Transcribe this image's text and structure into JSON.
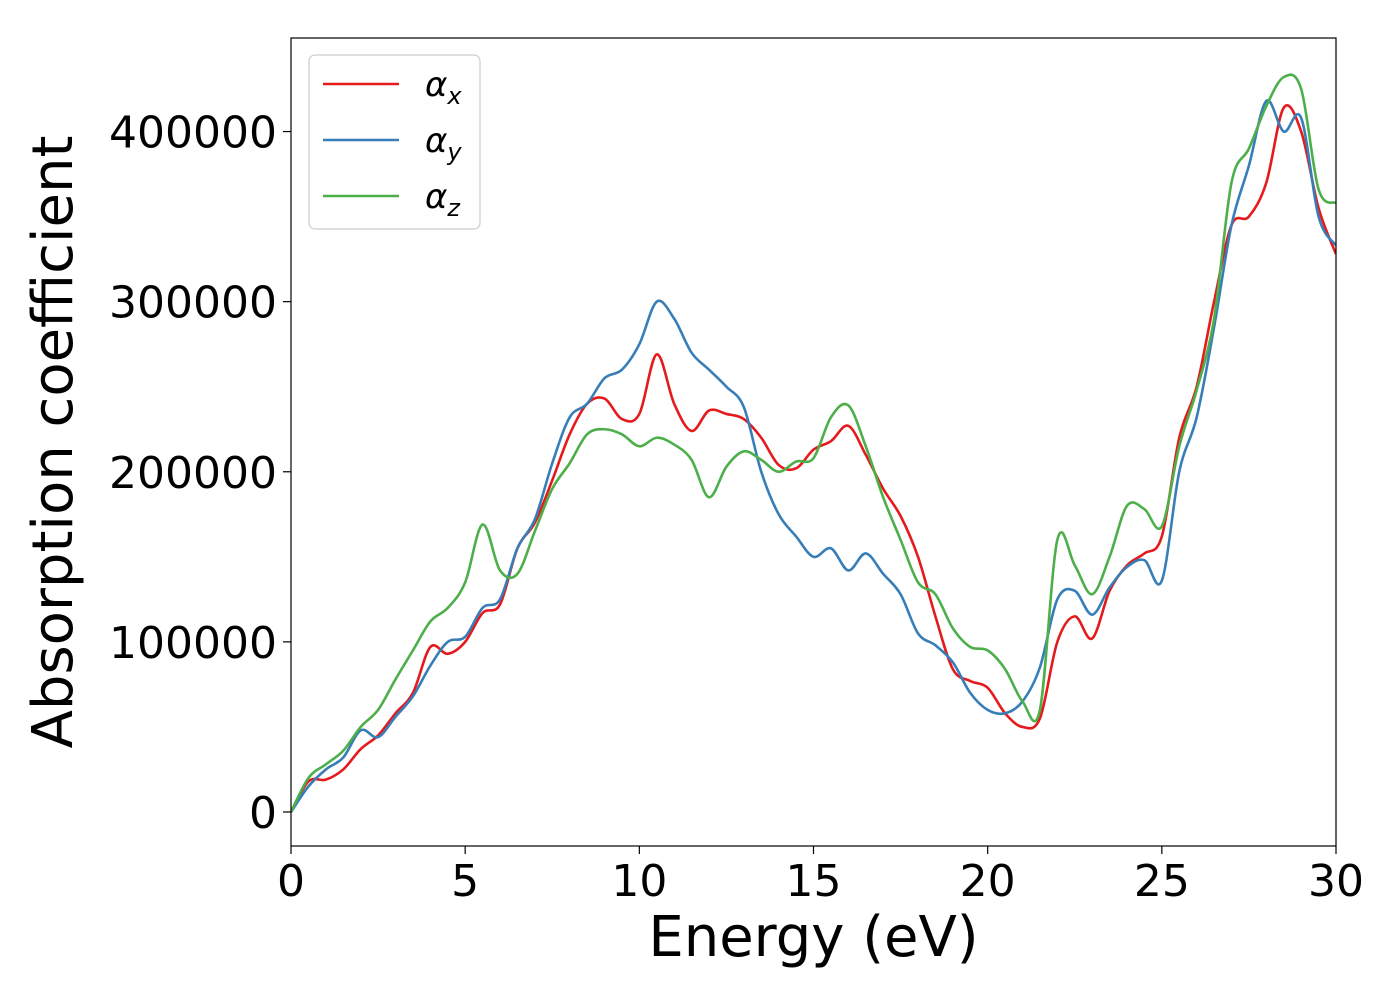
{
  "chart_data": {
    "type": "line",
    "xlabel": "Energy (eV)",
    "ylabel": "Absorption coefficient",
    "xlim": [
      0,
      30
    ],
    "ylim": [
      -20000,
      455000
    ],
    "xticks": [
      0,
      5,
      10,
      15,
      20,
      25,
      30
    ],
    "yticks": [
      0,
      100000,
      200000,
      300000,
      400000
    ],
    "grid": false,
    "legend_position": "upper-left",
    "series": [
      {
        "name": "α",
        "subscript": "x",
        "color": "#e41a1c",
        "x": [
          0,
          0.5,
          1,
          1.5,
          2,
          2.5,
          3,
          3.5,
          4,
          4.5,
          5,
          5.5,
          6,
          6.5,
          7,
          7.5,
          8,
          8.5,
          9,
          9.5,
          10,
          10.5,
          11,
          11.5,
          12,
          12.5,
          13,
          13.5,
          14,
          14.5,
          15,
          15.5,
          16,
          16.5,
          17,
          17.5,
          18,
          18.5,
          19,
          19.5,
          20,
          20.5,
          21,
          21.5,
          22,
          22.5,
          23,
          23.5,
          24,
          24.5,
          25,
          25.5,
          26,
          26.5,
          27,
          27.5,
          28,
          28.5,
          29,
          29.5,
          30
        ],
        "y": [
          0,
          18000,
          19000,
          25000,
          37000,
          45000,
          58000,
          70000,
          97000,
          93000,
          100000,
          117000,
          122000,
          155000,
          170000,
          195000,
          222000,
          240000,
          243000,
          231000,
          234000,
          269000,
          240000,
          224000,
          236000,
          234000,
          231000,
          220000,
          204000,
          202000,
          213000,
          218000,
          227000,
          210000,
          190000,
          174000,
          150000,
          115000,
          84000,
          77000,
          73000,
          58000,
          50000,
          55000,
          100000,
          115000,
          102000,
          130000,
          145000,
          152000,
          162000,
          220000,
          250000,
          300000,
          345000,
          350000,
          370000,
          414000,
          400000,
          355000,
          328000
        ]
      },
      {
        "name": "α",
        "subscript": "y",
        "color": "#377eb8",
        "x": [
          0,
          0.5,
          1,
          1.5,
          2,
          2.5,
          3,
          3.5,
          4,
          4.5,
          5,
          5.5,
          6,
          6.5,
          7,
          7.5,
          8,
          8.5,
          9,
          9.5,
          10,
          10.5,
          11,
          11.5,
          12,
          12.5,
          13,
          13.5,
          14,
          14.5,
          15,
          15.5,
          16,
          16.5,
          17,
          17.5,
          18,
          18.5,
          19,
          19.5,
          20,
          20.5,
          21,
          21.5,
          22,
          22.5,
          23,
          23.5,
          24,
          24.5,
          25,
          25.5,
          26,
          26.5,
          27,
          27.5,
          28,
          28.5,
          29,
          29.5,
          30
        ],
        "y": [
          0,
          15000,
          25000,
          32000,
          48000,
          44000,
          56000,
          68000,
          86000,
          100000,
          103000,
          120000,
          125000,
          155000,
          172000,
          205000,
          232000,
          240000,
          255000,
          260000,
          275000,
          300000,
          290000,
          270000,
          260000,
          250000,
          238000,
          200000,
          175000,
          162000,
          150000,
          155000,
          142000,
          152000,
          140000,
          128000,
          105000,
          98000,
          88000,
          70000,
          60000,
          58000,
          65000,
          85000,
          125000,
          130000,
          116000,
          132000,
          144000,
          148000,
          136000,
          200000,
          232000,
          285000,
          345000,
          380000,
          418000,
          400000,
          408000,
          350000,
          333000
        ]
      },
      {
        "name": "α",
        "subscript": "z",
        "color": "#4daf4a",
        "x": [
          0,
          0.5,
          1,
          1.5,
          2,
          2.5,
          3,
          3.5,
          4,
          4.5,
          5,
          5.5,
          6,
          6.5,
          7,
          7.5,
          8,
          8.5,
          9,
          9.5,
          10,
          10.5,
          11,
          11.5,
          12,
          12.5,
          13,
          13.5,
          14,
          14.5,
          15,
          15.5,
          16,
          16.5,
          17,
          17.5,
          18,
          18.5,
          19,
          19.5,
          20,
          20.5,
          21,
          21.5,
          22,
          22.5,
          23,
          23.5,
          24,
          24.5,
          25,
          25.5,
          26,
          26.5,
          27,
          27.5,
          28,
          28.5,
          29,
          29.5,
          30
        ],
        "y": [
          0,
          20000,
          28000,
          36000,
          50000,
          60000,
          78000,
          95000,
          112000,
          120000,
          135000,
          169000,
          142000,
          140000,
          165000,
          190000,
          205000,
          222000,
          225000,
          222000,
          215000,
          220000,
          216000,
          207000,
          185000,
          203000,
          212000,
          207000,
          200000,
          206000,
          208000,
          232000,
          239000,
          215000,
          185000,
          160000,
          135000,
          128000,
          108000,
          97000,
          95000,
          84000,
          65000,
          60000,
          160000,
          145000,
          128000,
          150000,
          180000,
          178000,
          168000,
          215000,
          248000,
          290000,
          370000,
          390000,
          415000,
          432000,
          425000,
          366000,
          358000
        ]
      }
    ]
  }
}
